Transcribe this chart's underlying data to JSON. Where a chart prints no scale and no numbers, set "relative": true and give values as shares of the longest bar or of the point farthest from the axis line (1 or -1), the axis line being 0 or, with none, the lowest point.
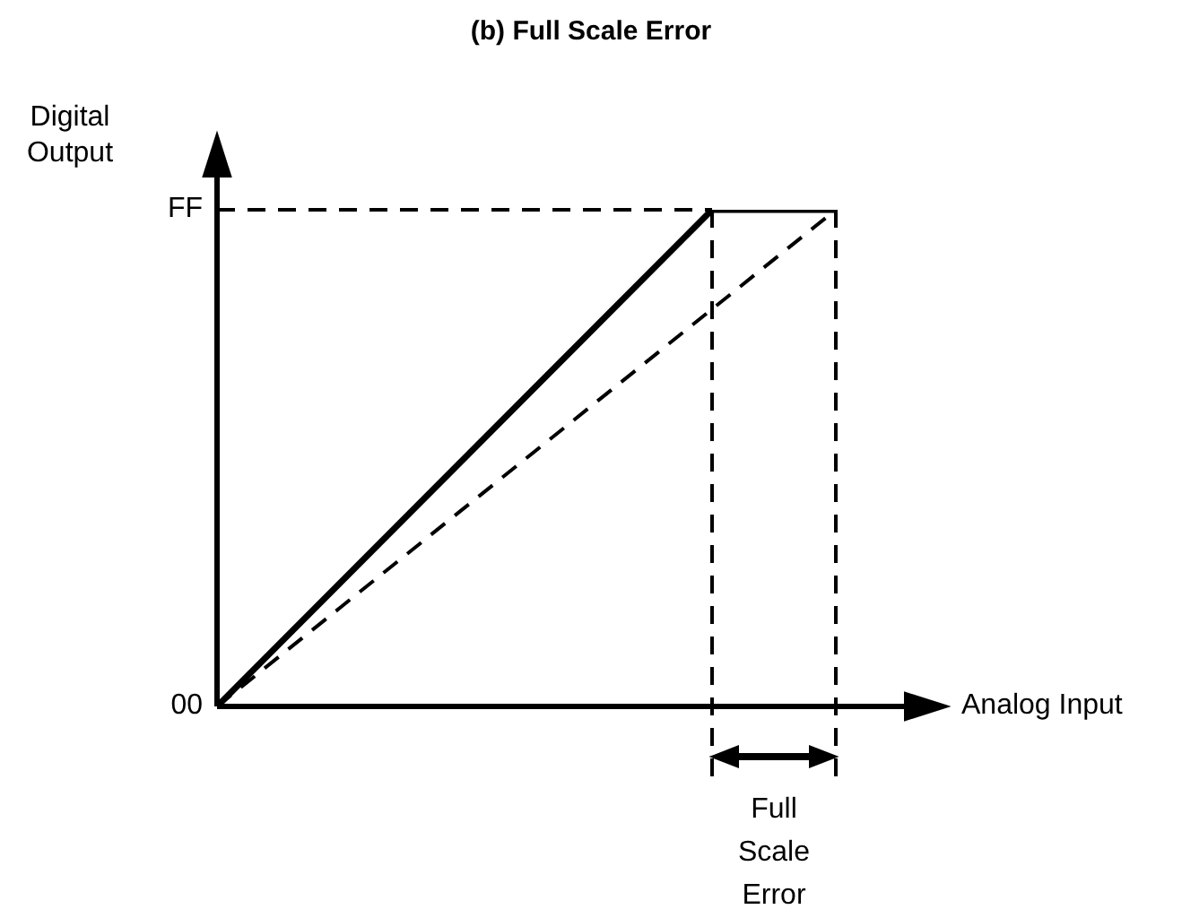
{
  "chart_data": {
    "type": "line",
    "title": "(b) Full Scale Error",
    "xlabel": "Analog Input",
    "ylabel": "Digital Output",
    "relative": true,
    "categories": [
      null,
      null,
      null,
      null,
      null,
      null
    ],
    "legend": false,
    "marker": "none",
    "series": [
      {
        "color": "#000000",
        "line_style": "solid",
        "values": [
          0,
          0.25,
          0.5,
          0.75,
          1,
          1
        ]
      },
      {
        "color": "#000000",
        "line_style": "dashed",
        "values": [
          0,
          0.2,
          0.4,
          0.6,
          0.8,
          1
        ]
      }
    ],
    "annotations": [
      "FF",
      "00",
      "Full Scale Error"
    ]
  }
}
